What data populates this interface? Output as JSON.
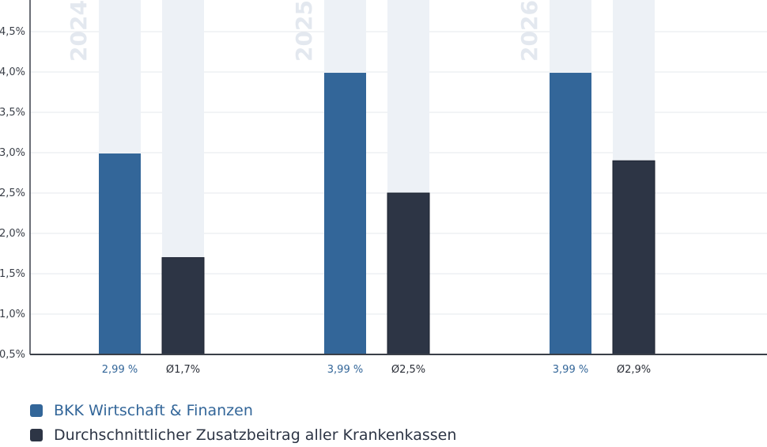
{
  "chart_data": {
    "type": "bar",
    "categories": [
      "2024",
      "2025",
      "2026"
    ],
    "series": [
      {
        "name": "BKK Wirtschaft & Finanzen",
        "values": [
          2.99,
          3.99,
          3.99
        ],
        "labels": [
          "2,99 %",
          "3,99 %",
          "3,99 %"
        ],
        "color": "#336699"
      },
      {
        "name": "Durchschnittlicher Zusatzbeitrag aller Krankenkassen",
        "values": [
          1.7,
          2.5,
          2.9
        ],
        "labels": [
          "Ø1,7%",
          "Ø2,5%",
          "Ø2,9%"
        ],
        "color": "#2d3545"
      }
    ],
    "yticks": [
      "0,5%",
      "1,0%",
      "1,5%",
      "2,0%",
      "2,5%",
      "3,0%",
      "3,5%",
      "4,0%",
      "4,5%"
    ],
    "ytick_values": [
      0.5,
      1.0,
      1.5,
      2.0,
      2.5,
      3.0,
      3.5,
      4.0,
      4.5
    ],
    "ylim": [
      0.5,
      4.9
    ],
    "grid": true,
    "legend_position": "bottom-left",
    "background_bar_color": "#edf1f6",
    "year_label_color": "#e3e8ef"
  }
}
